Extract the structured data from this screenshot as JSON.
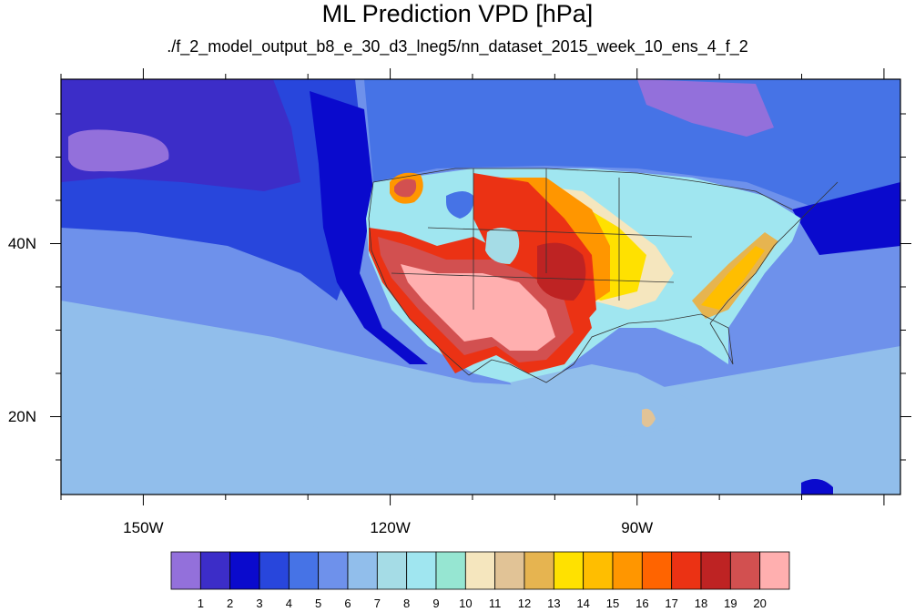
{
  "title": "ML Prediction VPD [hPa]",
  "subtitle": "./f_2_model_output_b8_e_30_d3_lneg5/nn_dataset_2015_week_10_ens_4_f_2",
  "map": {
    "lon_range": [
      -160,
      -58
    ],
    "lat_range": [
      11,
      59
    ],
    "x_ticks": [
      {
        "lon": -150,
        "label": "150W"
      },
      {
        "lon": -120,
        "label": "120W"
      },
      {
        "lon": -90,
        "label": "90W"
      }
    ],
    "y_ticks": [
      {
        "lat": 40,
        "label": "40N"
      },
      {
        "lat": 20,
        "label": "20N"
      }
    ]
  },
  "colorbar": {
    "labels": [
      "1",
      "2",
      "3",
      "4",
      "5",
      "6",
      "7",
      "8",
      "9",
      "10",
      "11",
      "12",
      "13",
      "14",
      "15",
      "16",
      "17",
      "18",
      "19",
      "20"
    ],
    "colors": [
      "#9370db",
      "#3c2dc8",
      "#0a0acd",
      "#2846dc",
      "#4673e6",
      "#6e91eb",
      "#91beeb",
      "#a5dce6",
      "#a0e6f0",
      "#96e6d2",
      "#f5e6be",
      "#e1c396",
      "#e6b450",
      "#ffe100",
      "#ffbe00",
      "#ff9600",
      "#ff6400",
      "#eb3214",
      "#be2323",
      "#d25050",
      "#ffafaf"
    ]
  }
}
